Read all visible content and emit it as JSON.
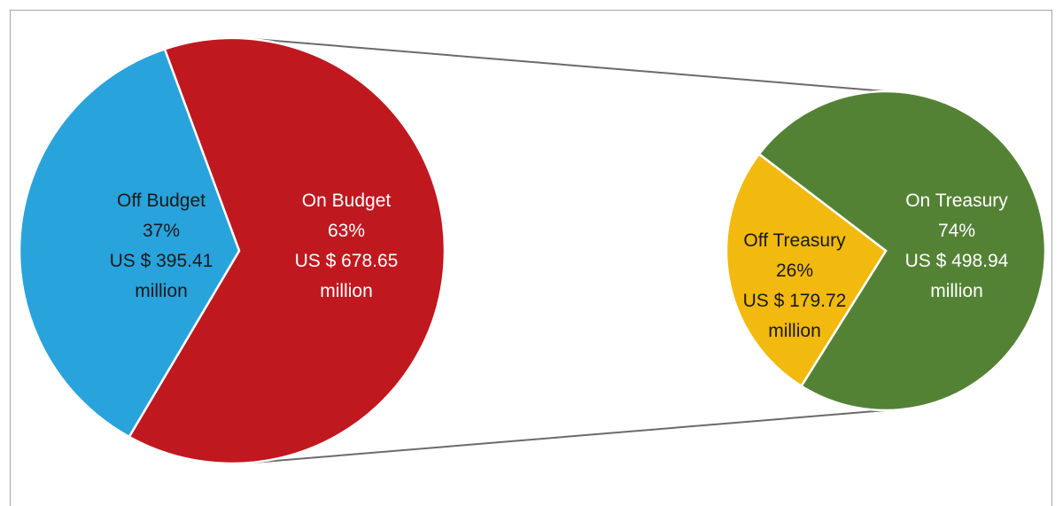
{
  "chart_data": {
    "type": "pie",
    "charts": [
      {
        "slices": [
          {
            "name": "Off Budget",
            "percent": "37%",
            "amount": "US $ 395.41",
            "unit": "million",
            "value": 395.41,
            "color": "#29a3dc",
            "label_color": "#1a1a1a"
          },
          {
            "name": "On Budget",
            "percent": "63%",
            "amount": "US $ 678.65",
            "unit": "million",
            "value": 678.65,
            "color": "#c0181f",
            "label_color": "#ffffff"
          }
        ]
      },
      {
        "slices": [
          {
            "name": "Off Treasury",
            "percent": "26%",
            "amount": "US $ 179.72",
            "unit": "million",
            "value": 179.72,
            "color": "#f2b90f",
            "label_color": "#1a1a1a"
          },
          {
            "name": "On Treasury",
            "percent": "74%",
            "amount": "US $ 498.94",
            "unit": "million",
            "value": 498.94,
            "color": "#548235",
            "label_color": "#ffffff"
          }
        ]
      }
    ],
    "connector_color": "#6b6b6b"
  }
}
